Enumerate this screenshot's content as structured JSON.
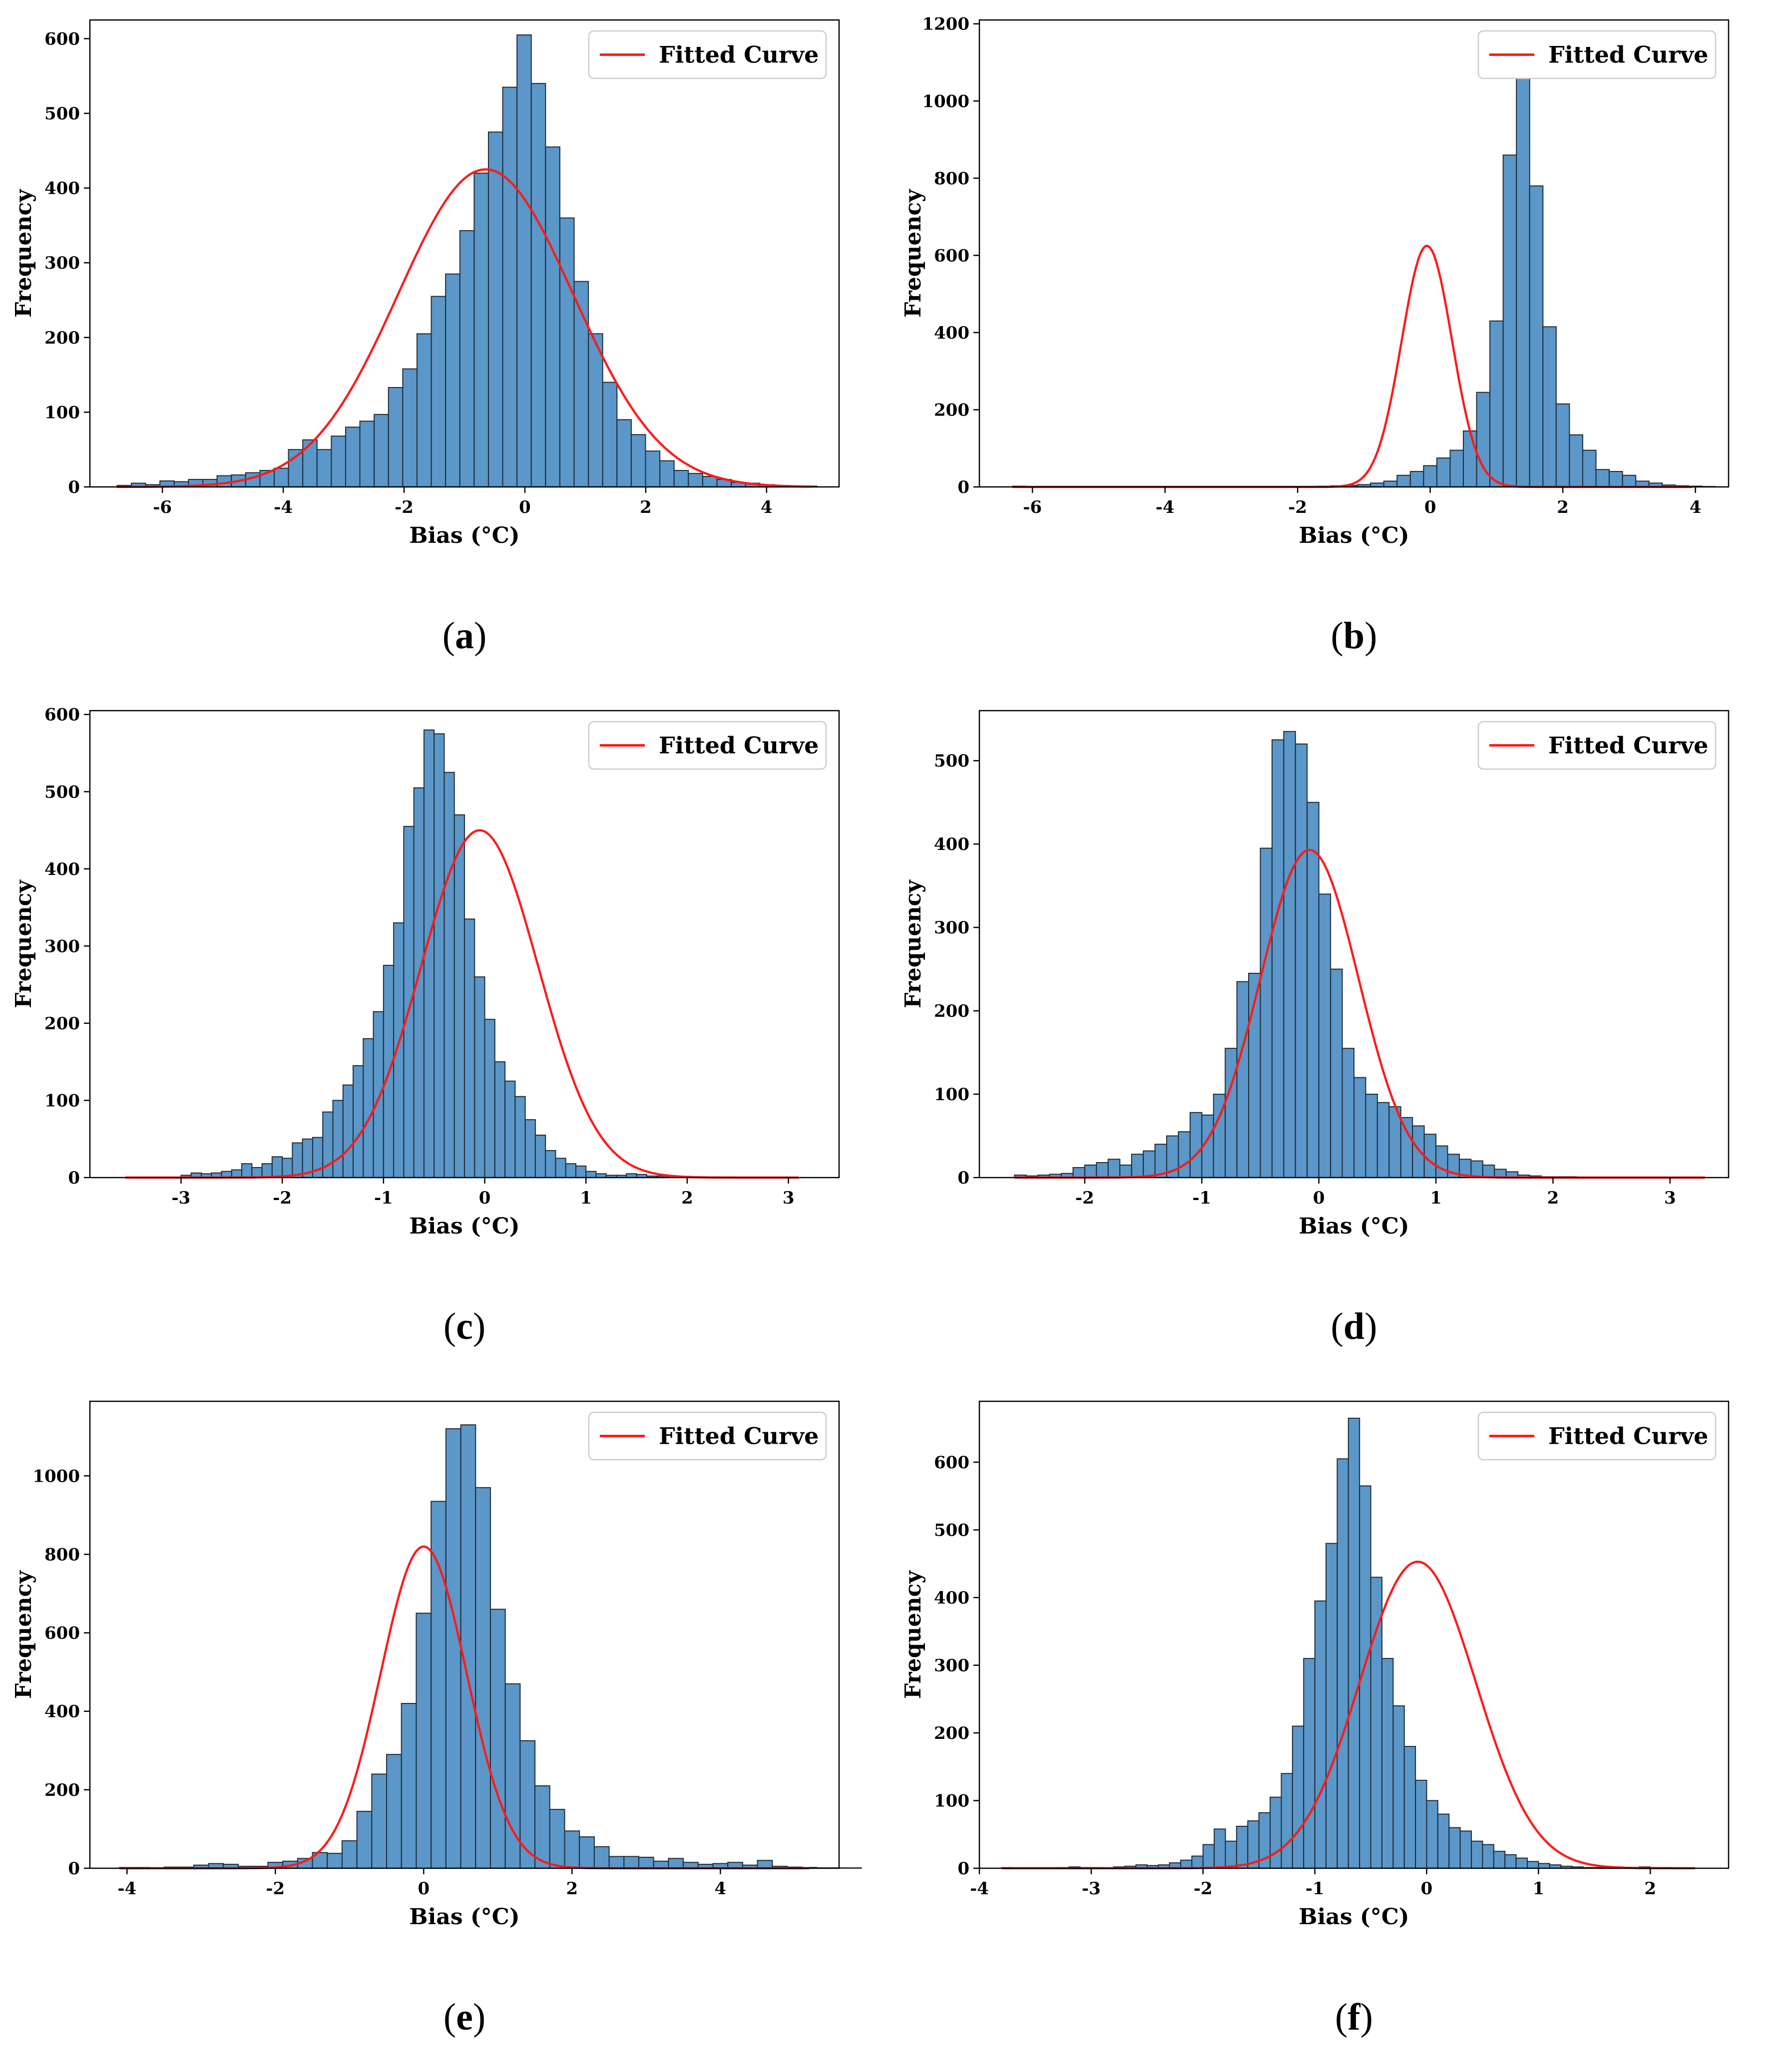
{
  "figure": {
    "series_color": "#5b97c8",
    "bar_edge_color": "#1f2a36",
    "curve_color": "#ff1a1a"
  },
  "chart_data": [
    {
      "id": "a",
      "caption": "a",
      "type": "bar",
      "xlabel": "Bias (°C)",
      "ylabel": "Frequency",
      "legend": "Fitted Curve",
      "legend_position": "top-right",
      "xlim": [
        -7.2,
        5.2
      ],
      "ylim": [
        0,
        625
      ],
      "xticks": [
        -6,
        -4,
        -2,
        0,
        2,
        4
      ],
      "yticks": [
        0,
        100,
        200,
        300,
        400,
        500,
        600
      ],
      "bin_start": -6.75,
      "bin_width": 0.2364,
      "values": [
        2,
        5,
        3,
        8,
        7,
        10,
        10,
        15,
        16,
        19,
        22,
        25,
        50,
        63,
        50,
        68,
        80,
        88,
        97,
        133,
        158,
        205,
        255,
        285,
        343,
        420,
        475,
        535,
        605,
        540,
        455,
        360,
        275,
        205,
        140,
        90,
        70,
        48,
        35,
        22,
        18,
        14,
        10,
        6,
        5,
        3,
        2,
        1,
        1
      ],
      "fit": {
        "mu": -0.65,
        "sigma": 1.45,
        "peak": 425,
        "x_range": [
          -6.75,
          4.75
        ]
      }
    },
    {
      "id": "b",
      "caption": "b",
      "type": "bar",
      "xlabel": "Bias (°C)",
      "ylabel": "Frequency",
      "legend": "Fitted Curve",
      "legend_position": "top-right",
      "xlim": [
        -6.8,
        4.5
      ],
      "ylim": [
        0,
        1210
      ],
      "xticks": [
        -6,
        -4,
        -2,
        0,
        2,
        4
      ],
      "yticks": [
        0,
        200,
        400,
        600,
        800,
        1000,
        1200
      ],
      "bin_start": -6.3,
      "bin_width": 0.2,
      "values": [
        2,
        1,
        0,
        0,
        0,
        0,
        0,
        0,
        0,
        0,
        0,
        0,
        0,
        0,
        1,
        0,
        1,
        0,
        1,
        0,
        1,
        0,
        1,
        2,
        3,
        4,
        6,
        10,
        15,
        30,
        40,
        55,
        75,
        95,
        145,
        245,
        430,
        860,
        1150,
        780,
        415,
        215,
        135,
        95,
        45,
        40,
        30,
        15,
        10,
        5,
        3,
        2,
        1,
        0,
        0,
        0,
        0,
        0,
        0,
        0,
        0,
        0,
        0,
        0,
        0,
        0,
        0,
        0,
        0,
        0,
        0,
        0,
        0,
        0,
        0,
        0,
        0,
        0,
        0,
        0,
        0,
        0,
        0,
        0,
        0,
        0,
        0,
        0,
        0,
        0,
        0,
        0,
        0,
        0,
        0,
        0,
        0,
        0,
        0,
        0,
        0,
        0,
        0,
        0,
        0,
        0,
        0,
        0
      ],
      "fit": {
        "mu": -0.05,
        "sigma": 0.38,
        "peak": 625,
        "x_range": [
          -6.3,
          3.95
        ]
      }
    },
    {
      "id": "c",
      "caption": "c",
      "type": "bar",
      "xlabel": "Bias (°C)",
      "ylabel": "Frequency",
      "legend": "Fitted Curve",
      "legend_position": "top-right",
      "xlim": [
        -3.9,
        3.5
      ],
      "ylim": [
        0,
        605
      ],
      "xticks": [
        -3,
        -2,
        -1,
        0,
        1,
        2,
        3
      ],
      "yticks": [
        0,
        100,
        200,
        300,
        400,
        500,
        600
      ],
      "bin_start": -3.0,
      "bin_width": 0.1,
      "values": [
        3,
        6,
        5,
        6,
        8,
        10,
        18,
        13,
        18,
        27,
        25,
        45,
        50,
        52,
        85,
        100,
        120,
        145,
        180,
        215,
        275,
        330,
        455,
        505,
        580,
        575,
        525,
        470,
        335,
        260,
        205,
        150,
        125,
        105,
        75,
        55,
        35,
        25,
        18,
        15,
        8,
        5,
        3,
        3,
        5,
        4,
        2,
        2,
        1
      ],
      "fit": {
        "mu": -0.05,
        "sigma": 0.58,
        "peak": 450,
        "x_range": [
          -3.55,
          3.1
        ]
      }
    },
    {
      "id": "d",
      "caption": "d",
      "type": "bar",
      "xlabel": "Bias (°C)",
      "ylabel": "Frequency",
      "legend": "Fitted Curve",
      "legend_position": "top-right",
      "xlim": [
        -2.9,
        3.5
      ],
      "ylim": [
        0,
        560
      ],
      "xticks": [
        -2,
        -1,
        0,
        1,
        2,
        3
      ],
      "yticks": [
        0,
        100,
        200,
        300,
        400,
        500
      ],
      "bin_start": -2.6,
      "bin_width": 0.1,
      "values": [
        3,
        2,
        3,
        4,
        5,
        12,
        15,
        18,
        22,
        15,
        28,
        32,
        40,
        50,
        55,
        78,
        75,
        100,
        155,
        235,
        245,
        395,
        525,
        535,
        520,
        450,
        340,
        250,
        155,
        120,
        100,
        90,
        85,
        72,
        62,
        52,
        38,
        28,
        22,
        20,
        15,
        10,
        7,
        3,
        2,
        1,
        1,
        1
      ],
      "fit": {
        "mu": -0.08,
        "sigma": 0.42,
        "peak": 393,
        "x_range": [
          -2.6,
          3.3
        ]
      }
    },
    {
      "id": "e",
      "caption": "e",
      "type": "bar",
      "xlabel": "Bias (°C)",
      "ylabel": "Frequency",
      "legend": "Fitted Curve",
      "legend_position": "top-right",
      "xlim": [
        -4.5,
        5.6
      ],
      "ylim": [
        0,
        1190
      ],
      "xticks": [
        -4,
        -2,
        0,
        2,
        4
      ],
      "yticks": [
        0,
        200,
        400,
        600,
        800,
        1000
      ],
      "bin_start": -4.1,
      "bin_width": 0.2,
      "values": [
        2,
        2,
        1,
        3,
        3,
        8,
        12,
        10,
        5,
        5,
        15,
        18,
        25,
        40,
        38,
        70,
        145,
        240,
        290,
        420,
        650,
        935,
        1120,
        1130,
        970,
        660,
        470,
        325,
        210,
        150,
        95,
        80,
        55,
        30,
        30,
        28,
        18,
        25,
        15,
        10,
        12,
        15,
        8,
        20,
        5,
        3,
        2,
        1,
        1,
        1,
        0
      ],
      "fit": {
        "mu": 0.0,
        "sigma": 0.58,
        "peak": 820,
        "x_range": [
          -4.1,
          5.2
        ]
      }
    },
    {
      "id": "f",
      "caption": "f",
      "type": "bar",
      "xlabel": "Bias (°C)",
      "ylabel": "Frequency",
      "legend": "Fitted Curve",
      "legend_position": "top-right",
      "xlim": [
        -4.0,
        2.7
      ],
      "ylim": [
        0,
        690
      ],
      "xticks": [
        -4,
        -3,
        -2,
        -1,
        0,
        1,
        2
      ],
      "yticks": [
        0,
        100,
        200,
        300,
        400,
        500,
        600
      ],
      "bin_start": -3.8,
      "bin_width": 0.1,
      "values": [
        1,
        0,
        0,
        0,
        0,
        1,
        2,
        1,
        1,
        0,
        2,
        3,
        5,
        4,
        5,
        8,
        12,
        18,
        35,
        58,
        40,
        62,
        70,
        82,
        105,
        140,
        210,
        310,
        395,
        480,
        605,
        665,
        565,
        430,
        310,
        240,
        180,
        130,
        100,
        80,
        60,
        55,
        40,
        35,
        25,
        20,
        15,
        10,
        7,
        5,
        3,
        2,
        1,
        1,
        1,
        1,
        1,
        2,
        1,
        1,
        0
      ],
      "fit": {
        "mu": -0.08,
        "sigma": 0.52,
        "peak": 453,
        "x_range": [
          -3.8,
          2.4
        ]
      }
    }
  ]
}
